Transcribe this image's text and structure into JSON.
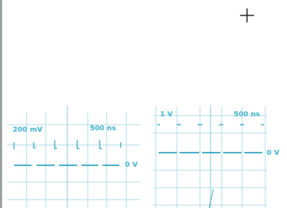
{
  "panels": [
    {
      "amplitude": "200 mV",
      "timebase": "500 ns",
      "zero": "0 V"
    },
    {
      "amplitude": "1 V",
      "timebase": "500 ns",
      "zero": "0 V"
    }
  ]
}
